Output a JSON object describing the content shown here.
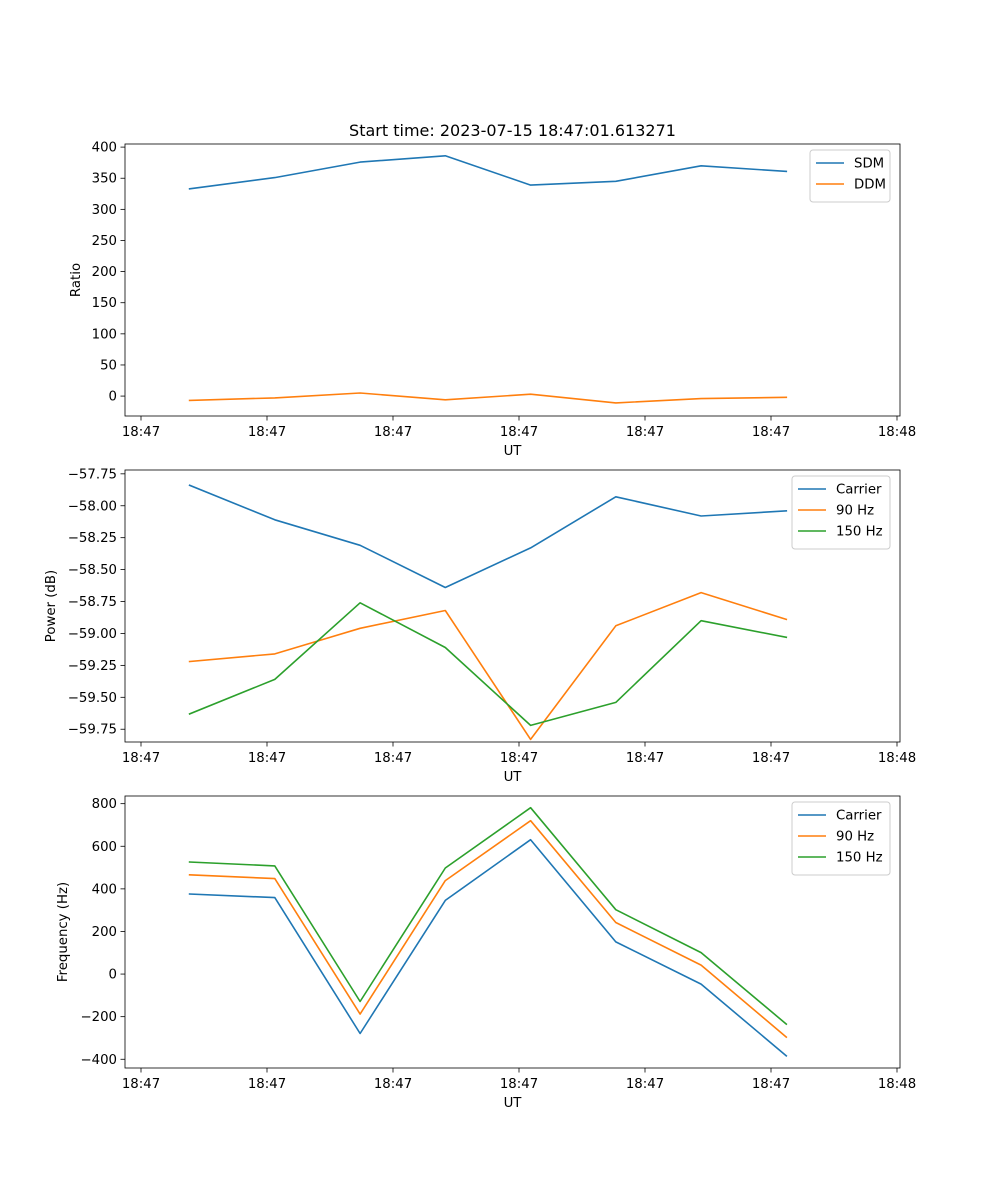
{
  "title": "Start time: 2023-07-15 18:47:01.613271",
  "chart_data": [
    {
      "type": "line",
      "xlabel": "UT",
      "ylabel": "Ratio",
      "xticks": [
        "18:47",
        "18:47",
        "18:47",
        "18:47",
        "18:47",
        "18:47",
        "18:48"
      ],
      "yticks": [
        "0",
        "50",
        "100",
        "150",
        "200",
        "250",
        "300",
        "350",
        "400"
      ],
      "ytick_values": [
        0,
        50,
        100,
        150,
        200,
        250,
        300,
        350,
        400
      ],
      "x": [
        0.5,
        1.16,
        1.82,
        2.48,
        3.14,
        3.8,
        4.46,
        5.12
      ],
      "xlim": [
        0,
        6
      ],
      "ylim": [
        -32,
        405
      ],
      "legend": "top-right",
      "series": [
        {
          "name": "SDM",
          "color": "#1f77b4",
          "values": [
            333,
            351,
            376,
            386,
            339,
            345,
            370,
            361
          ]
        },
        {
          "name": "DDM",
          "color": "#ff7f0e",
          "values": [
            -7,
            -3,
            5,
            -6,
            3,
            -11,
            -4,
            -2
          ]
        }
      ]
    },
    {
      "type": "line",
      "xlabel": "UT",
      "ylabel": "Power (dB)",
      "xticks": [
        "18:47",
        "18:47",
        "18:47",
        "18:47",
        "18:47",
        "18:47",
        "18:48"
      ],
      "yticks": [
        "−57.75",
        "−58.00",
        "−58.25",
        "−58.50",
        "−58.75",
        "−59.00",
        "−59.25",
        "−59.50",
        "−59.75"
      ],
      "ytick_values": [
        -57.75,
        -58.0,
        -58.25,
        -58.5,
        -58.75,
        -59.0,
        -59.25,
        -59.5,
        -59.75
      ],
      "x": [
        0.5,
        1.16,
        1.82,
        2.48,
        3.14,
        3.8,
        4.46,
        5.12
      ],
      "xlim": [
        0,
        6
      ],
      "ylim": [
        -59.85,
        -57.72
      ],
      "legend": "top-right",
      "series": [
        {
          "name": "Carrier",
          "color": "#1f77b4",
          "values": [
            -57.84,
            -58.11,
            -58.31,
            -58.64,
            -58.33,
            -57.93,
            -58.08,
            -58.04
          ]
        },
        {
          "name": "90 Hz",
          "color": "#ff7f0e",
          "values": [
            -59.22,
            -59.16,
            -58.96,
            -58.82,
            -59.83,
            -58.94,
            -58.68,
            -58.89
          ]
        },
        {
          "name": "150 Hz",
          "color": "#2ca02c",
          "values": [
            -59.63,
            -59.36,
            -58.76,
            -59.11,
            -59.72,
            -59.54,
            -58.9,
            -59.03
          ]
        }
      ]
    },
    {
      "type": "line",
      "xlabel": "UT",
      "ylabel": "Frequency (Hz)",
      "xticks": [
        "18:47",
        "18:47",
        "18:47",
        "18:47",
        "18:47",
        "18:47",
        "18:48"
      ],
      "yticks": [
        "−400",
        "−200",
        "0",
        "200",
        "400",
        "600",
        "800"
      ],
      "ytick_values": [
        -400,
        -200,
        0,
        200,
        400,
        600,
        800
      ],
      "x": [
        0.5,
        1.16,
        1.82,
        2.48,
        3.14,
        3.8,
        4.46,
        5.12
      ],
      "xlim": [
        0,
        6
      ],
      "ylim": [
        -441,
        836
      ],
      "legend": "top-right",
      "series": [
        {
          "name": "Carrier",
          "color": "#1f77b4",
          "values": [
            376,
            359,
            -279,
            346,
            631,
            151,
            -47,
            -384
          ]
        },
        {
          "name": "90 Hz",
          "color": "#ff7f0e",
          "values": [
            466,
            448,
            -188,
            439,
            720,
            242,
            42,
            -296
          ]
        },
        {
          "name": "150 Hz",
          "color": "#2ca02c",
          "values": [
            526,
            508,
            -129,
            498,
            781,
            302,
            101,
            -235
          ]
        }
      ]
    }
  ]
}
